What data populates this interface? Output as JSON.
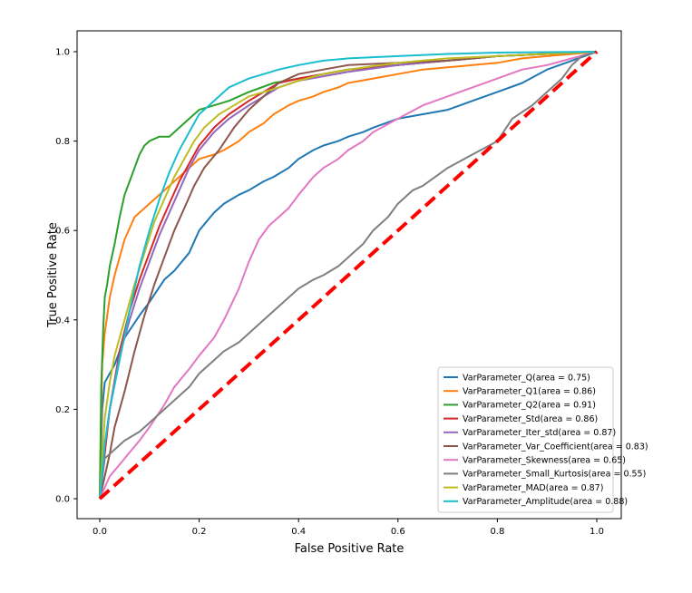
{
  "chart_data": {
    "type": "line",
    "title": "",
    "xlabel": "False Positive Rate",
    "ylabel": "True Positive Rate",
    "xlim": [
      0.0,
      1.0
    ],
    "ylim": [
      0.0,
      1.0
    ],
    "xticks": [
      "0.0",
      "0.2",
      "0.4",
      "0.6",
      "0.8",
      "1.0"
    ],
    "yticks": [
      "0.0",
      "0.2",
      "0.4",
      "0.6",
      "0.8",
      "1.0"
    ],
    "grid": false,
    "legend_position": "lower-right",
    "series": [
      {
        "name": "VarParameter_Q(area = 0.75)",
        "color": "#1f77b4",
        "x": [
          0,
          0.005,
          0.01,
          0.03,
          0.05,
          0.08,
          0.1,
          0.13,
          0.15,
          0.18,
          0.2,
          0.23,
          0.25,
          0.28,
          0.3,
          0.33,
          0.35,
          0.38,
          0.4,
          0.43,
          0.45,
          0.48,
          0.5,
          0.53,
          0.55,
          0.6,
          0.65,
          0.7,
          0.75,
          0.8,
          0.85,
          0.9,
          0.95,
          1.0
        ],
        "y": [
          0,
          0.2,
          0.26,
          0.3,
          0.36,
          0.41,
          0.44,
          0.49,
          0.51,
          0.55,
          0.6,
          0.64,
          0.66,
          0.68,
          0.69,
          0.71,
          0.72,
          0.74,
          0.76,
          0.78,
          0.79,
          0.8,
          0.81,
          0.82,
          0.83,
          0.85,
          0.86,
          0.87,
          0.89,
          0.91,
          0.93,
          0.96,
          0.98,
          1.0
        ]
      },
      {
        "name": "VarParameter_Q1(area = 0.86)",
        "color": "#ff7f0e",
        "x": [
          0,
          0.005,
          0.01,
          0.02,
          0.03,
          0.05,
          0.07,
          0.1,
          0.12,
          0.15,
          0.18,
          0.2,
          0.23,
          0.25,
          0.28,
          0.3,
          0.33,
          0.35,
          0.38,
          0.4,
          0.43,
          0.45,
          0.48,
          0.5,
          0.55,
          0.6,
          0.65,
          0.7,
          0.75,
          0.8,
          0.85,
          0.9,
          0.95,
          1.0
        ],
        "y": [
          0,
          0.3,
          0.37,
          0.45,
          0.5,
          0.58,
          0.63,
          0.66,
          0.68,
          0.71,
          0.74,
          0.76,
          0.77,
          0.78,
          0.8,
          0.82,
          0.84,
          0.86,
          0.88,
          0.89,
          0.9,
          0.91,
          0.92,
          0.93,
          0.94,
          0.95,
          0.96,
          0.965,
          0.97,
          0.975,
          0.985,
          0.99,
          0.995,
          1.0
        ]
      },
      {
        "name": "VarParameter_Q2(area = 0.91)",
        "color": "#2ca02c",
        "x": [
          0,
          0.003,
          0.007,
          0.01,
          0.015,
          0.02,
          0.03,
          0.04,
          0.05,
          0.06,
          0.07,
          0.08,
          0.09,
          0.1,
          0.12,
          0.14,
          0.16,
          0.18,
          0.2,
          0.23,
          0.26,
          0.3,
          0.35,
          0.4,
          0.45,
          0.5,
          0.6,
          0.7,
          0.8,
          0.9,
          1.0
        ],
        "y": [
          0,
          0.25,
          0.38,
          0.45,
          0.48,
          0.52,
          0.57,
          0.63,
          0.68,
          0.71,
          0.74,
          0.77,
          0.79,
          0.8,
          0.81,
          0.81,
          0.83,
          0.85,
          0.87,
          0.88,
          0.89,
          0.91,
          0.93,
          0.94,
          0.95,
          0.96,
          0.97,
          0.98,
          0.99,
          0.995,
          1.0
        ]
      },
      {
        "name": "VarParameter_Std(area = 0.86)",
        "color": "#d62728",
        "x": [
          0,
          0.01,
          0.02,
          0.04,
          0.06,
          0.08,
          0.1,
          0.12,
          0.14,
          0.16,
          0.18,
          0.2,
          0.23,
          0.26,
          0.3,
          0.33,
          0.36,
          0.4,
          0.45,
          0.5,
          0.55,
          0.6,
          0.7,
          0.8,
          0.9,
          1.0
        ],
        "y": [
          0,
          0.1,
          0.2,
          0.33,
          0.42,
          0.49,
          0.55,
          0.61,
          0.66,
          0.71,
          0.75,
          0.79,
          0.83,
          0.86,
          0.89,
          0.91,
          0.93,
          0.94,
          0.95,
          0.96,
          0.965,
          0.97,
          0.98,
          0.99,
          0.995,
          1.0
        ]
      },
      {
        "name": "VarParameter_Iter_std(area = 0.87)",
        "color": "#9467bd",
        "x": [
          0,
          0.01,
          0.02,
          0.04,
          0.06,
          0.08,
          0.1,
          0.12,
          0.14,
          0.16,
          0.18,
          0.2,
          0.23,
          0.26,
          0.3,
          0.33,
          0.36,
          0.4,
          0.45,
          0.5,
          0.6,
          0.7,
          0.8,
          0.9,
          1.0
        ],
        "y": [
          0,
          0.12,
          0.2,
          0.32,
          0.4,
          0.47,
          0.53,
          0.59,
          0.64,
          0.69,
          0.74,
          0.78,
          0.82,
          0.85,
          0.88,
          0.9,
          0.92,
          0.935,
          0.945,
          0.955,
          0.97,
          0.98,
          0.99,
          0.995,
          1.0
        ]
      },
      {
        "name": "VarParameter_Var_Coefficient(area = 0.83)",
        "color": "#8c564b",
        "x": [
          0,
          0.01,
          0.02,
          0.03,
          0.05,
          0.07,
          0.09,
          0.11,
          0.13,
          0.15,
          0.17,
          0.19,
          0.21,
          0.24,
          0.27,
          0.3,
          0.33,
          0.36,
          0.4,
          0.45,
          0.5,
          0.6,
          0.7,
          0.8,
          0.9,
          1.0
        ],
        "y": [
          0,
          0.05,
          0.1,
          0.16,
          0.24,
          0.33,
          0.41,
          0.48,
          0.54,
          0.6,
          0.65,
          0.7,
          0.74,
          0.78,
          0.83,
          0.87,
          0.9,
          0.93,
          0.95,
          0.96,
          0.97,
          0.975,
          0.98,
          0.99,
          0.995,
          1.0
        ]
      },
      {
        "name": "VarParameter_Skewness(area = 0.65)",
        "color": "#e377c2",
        "x": [
          0,
          0.02,
          0.05,
          0.08,
          0.1,
          0.13,
          0.15,
          0.18,
          0.2,
          0.23,
          0.25,
          0.28,
          0.3,
          0.32,
          0.34,
          0.36,
          0.38,
          0.4,
          0.43,
          0.45,
          0.48,
          0.5,
          0.53,
          0.55,
          0.6,
          0.65,
          0.7,
          0.75,
          0.8,
          0.85,
          0.9,
          0.95,
          1.0
        ],
        "y": [
          0,
          0.05,
          0.09,
          0.13,
          0.16,
          0.21,
          0.25,
          0.29,
          0.32,
          0.36,
          0.4,
          0.47,
          0.53,
          0.58,
          0.61,
          0.63,
          0.65,
          0.68,
          0.72,
          0.74,
          0.76,
          0.78,
          0.8,
          0.82,
          0.85,
          0.88,
          0.9,
          0.92,
          0.94,
          0.96,
          0.97,
          0.985,
          1.0
        ]
      },
      {
        "name": "VarParameter_Small_Kurtosis(area = 0.55)",
        "color": "#7f7f7f",
        "x": [
          0,
          0.01,
          0.03,
          0.05,
          0.08,
          0.1,
          0.13,
          0.15,
          0.18,
          0.2,
          0.23,
          0.25,
          0.28,
          0.3,
          0.33,
          0.35,
          0.38,
          0.4,
          0.43,
          0.45,
          0.48,
          0.5,
          0.53,
          0.55,
          0.58,
          0.6,
          0.63,
          0.65,
          0.7,
          0.75,
          0.8,
          0.83,
          0.87,
          0.9,
          0.93,
          0.95,
          0.97,
          1.0
        ],
        "y": [
          0,
          0.09,
          0.11,
          0.13,
          0.15,
          0.17,
          0.2,
          0.22,
          0.25,
          0.28,
          0.31,
          0.33,
          0.35,
          0.37,
          0.4,
          0.42,
          0.45,
          0.47,
          0.49,
          0.5,
          0.52,
          0.54,
          0.57,
          0.6,
          0.63,
          0.66,
          0.69,
          0.7,
          0.74,
          0.77,
          0.8,
          0.85,
          0.88,
          0.91,
          0.94,
          0.97,
          0.99,
          1.0
        ]
      },
      {
        "name": "VarParameter_MAD(area = 0.87)",
        "color": "#bcbd22",
        "x": [
          0,
          0.01,
          0.02,
          0.03,
          0.05,
          0.07,
          0.09,
          0.11,
          0.13,
          0.15,
          0.17,
          0.19,
          0.21,
          0.24,
          0.27,
          0.3,
          0.33,
          0.36,
          0.4,
          0.45,
          0.5,
          0.6,
          0.7,
          0.8,
          0.9,
          1.0
        ],
        "y": [
          0,
          0.18,
          0.26,
          0.32,
          0.4,
          0.48,
          0.55,
          0.62,
          0.67,
          0.72,
          0.76,
          0.8,
          0.83,
          0.86,
          0.88,
          0.9,
          0.91,
          0.92,
          0.935,
          0.95,
          0.96,
          0.975,
          0.985,
          0.99,
          0.995,
          1.0
        ]
      },
      {
        "name": "VarParameter_Amplitude(area = 0.88)",
        "color": "#17becf",
        "x": [
          0,
          0.005,
          0.01,
          0.02,
          0.04,
          0.06,
          0.08,
          0.1,
          0.12,
          0.14,
          0.16,
          0.18,
          0.2,
          0.22,
          0.24,
          0.26,
          0.28,
          0.3,
          0.33,
          0.36,
          0.4,
          0.45,
          0.5,
          0.6,
          0.7,
          0.8,
          0.9,
          1.0
        ],
        "y": [
          0,
          0.06,
          0.12,
          0.2,
          0.31,
          0.42,
          0.52,
          0.6,
          0.67,
          0.73,
          0.78,
          0.82,
          0.86,
          0.88,
          0.9,
          0.92,
          0.93,
          0.94,
          0.95,
          0.96,
          0.97,
          0.98,
          0.985,
          0.99,
          0.995,
          0.998,
          0.999,
          1.0
        ]
      }
    ],
    "reference_line": {
      "name": "chance",
      "color": "#ff0000",
      "x": [
        0,
        1
      ],
      "y": [
        0,
        1
      ],
      "style": "dashed"
    }
  }
}
